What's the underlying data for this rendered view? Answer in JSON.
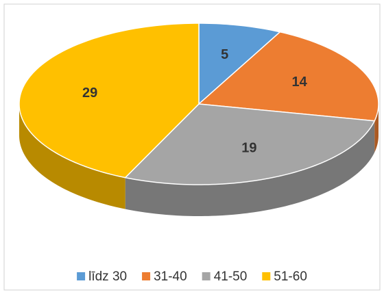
{
  "chart_data": {
    "type": "pie",
    "categories": [
      "līdz 30",
      "31-40",
      "41-50",
      "51-60"
    ],
    "values": [
      5,
      14,
      19,
      29
    ],
    "colors": [
      "#5b9bd5",
      "#ed7d31",
      "#a5a5a5",
      "#ffc000"
    ],
    "legend": "bottom"
  }
}
